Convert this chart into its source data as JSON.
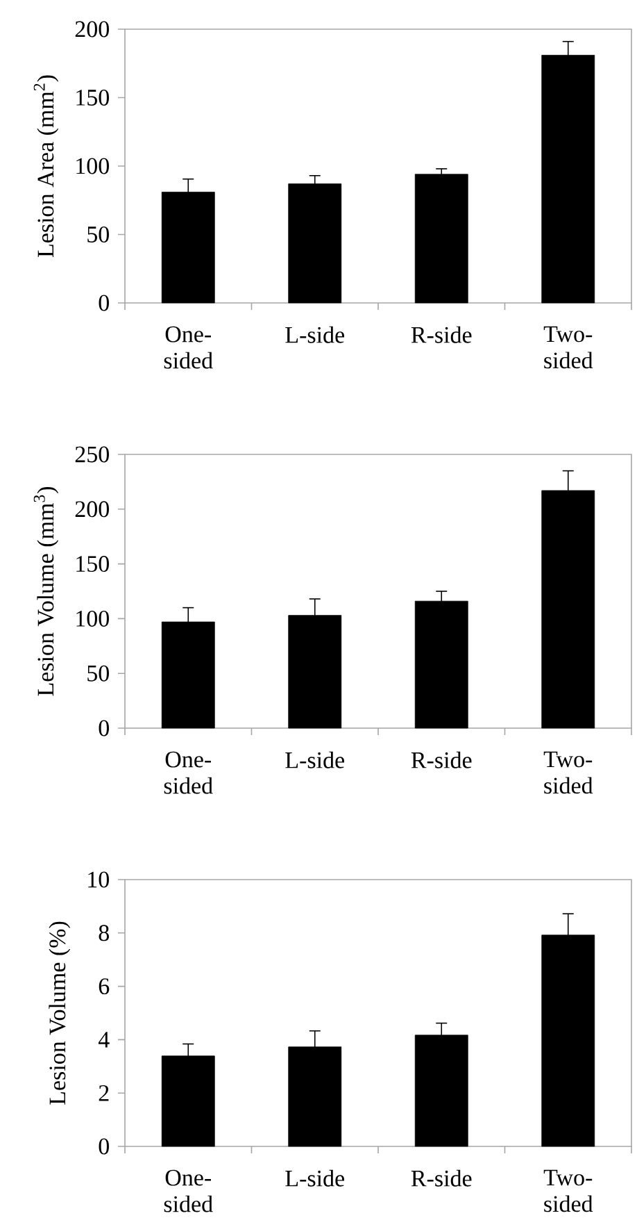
{
  "chart_data": [
    {
      "type": "bar",
      "categories": [
        "One-sided",
        "L-side",
        "R-side",
        "Two-sided"
      ],
      "values": [
        81,
        87,
        94,
        181
      ],
      "errors": [
        9.5,
        6,
        4,
        10
      ],
      "color": "#000000",
      "ylabel": "Lesion Area (mm$^{2}$)",
      "ylim": [
        0,
        200
      ],
      "yticks": [
        0,
        50,
        100,
        150,
        200
      ]
    },
    {
      "type": "bar",
      "categories": [
        "One-sided",
        "L-side",
        "R-side",
        "Two-sided"
      ],
      "values": [
        97,
        103,
        116,
        217
      ],
      "errors": [
        13,
        15,
        9,
        18
      ],
      "color": "#000000",
      "ylabel": "Lesion Volume (mm$^{3}$)",
      "ylim": [
        0,
        250
      ],
      "yticks": [
        0,
        50,
        100,
        150,
        200,
        250
      ]
    },
    {
      "type": "bar",
      "categories": [
        "One-sided",
        "L-side",
        "R-side",
        "Two-sided"
      ],
      "values": [
        3.39,
        3.73,
        4.17,
        7.92
      ],
      "errors": [
        0.45,
        0.6,
        0.45,
        0.8
      ],
      "color": "#000000",
      "ylabel": "Lesion Volume (%)",
      "ylim": [
        0,
        10
      ],
      "yticks": [
        0,
        2,
        4,
        6,
        8,
        10
      ]
    }
  ]
}
